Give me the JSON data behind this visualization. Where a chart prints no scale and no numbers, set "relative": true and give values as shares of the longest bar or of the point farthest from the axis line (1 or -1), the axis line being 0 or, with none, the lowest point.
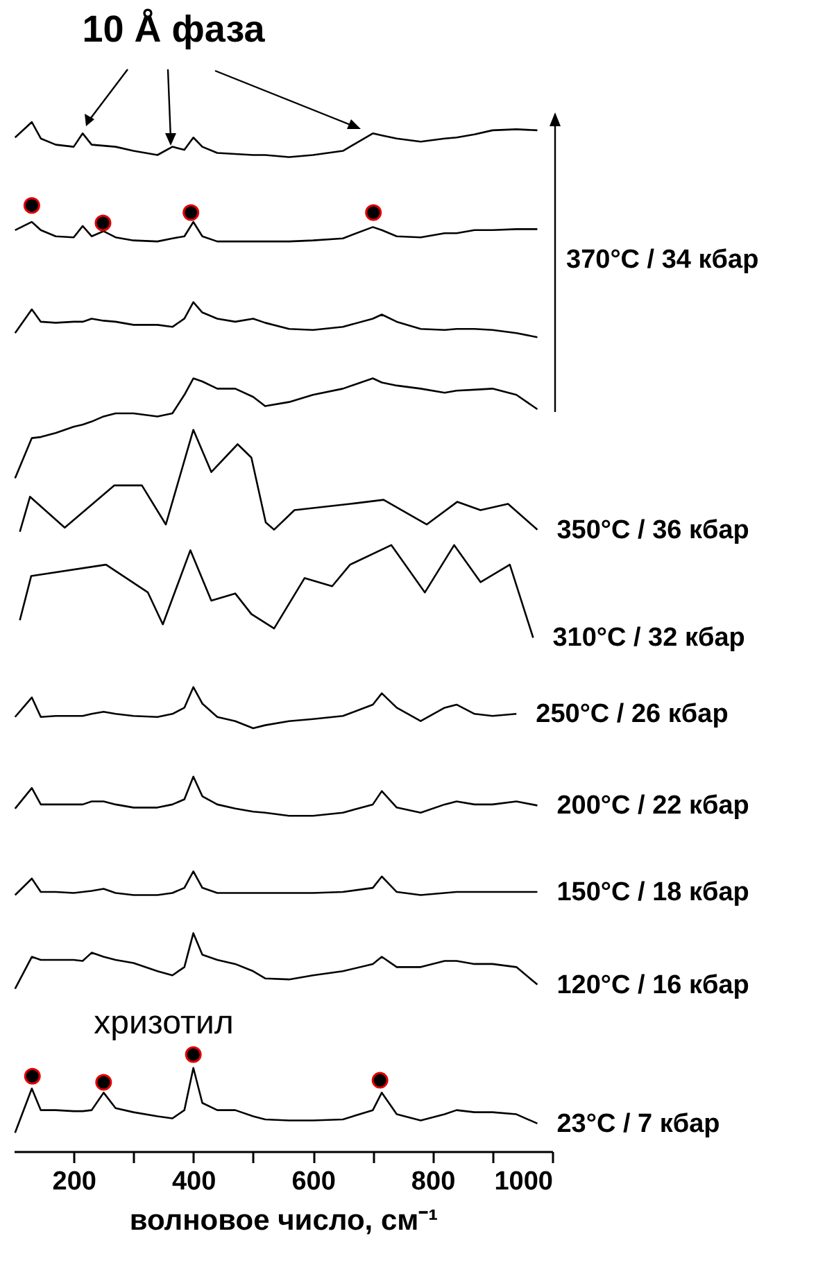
{
  "chart_data": {
    "type": "line",
    "relative": true,
    "xlabel": "волновое число, см⁻¹",
    "xlim": [
      100,
      1000
    ],
    "xticks": [
      200,
      {
        "value": 300,
        "label": null
      },
      400,
      {
        "value": 500,
        "label": null
      },
      600,
      {
        "value": 700,
        "label": null
      },
      800,
      {
        "value": 900,
        "label": null
      },
      1000
    ],
    "x": [
      102,
      130,
      145,
      170,
      200,
      215,
      230,
      250,
      270,
      300,
      340,
      365,
      385,
      400,
      415,
      440,
      470,
      500,
      520,
      560,
      600,
      650,
      700,
      715,
      740,
      780,
      820,
      840,
      870,
      900,
      940,
      975
    ],
    "annotations": [
      "10 Å фаза",
      "370°C / 34 кбар",
      "хризотил"
    ],
    "series": [
      {
        "color": "#000000",
        "values": [
          0.985,
          1.0,
          0.984,
          0.978,
          0.976,
          0.989,
          0.978,
          0.977,
          0.976,
          0.972,
          0.968,
          0.976,
          0.973,
          0.985,
          0.976,
          0.97,
          0.969,
          0.968,
          0.968,
          0.966,
          0.968,
          0.972,
          0.989,
          0.987,
          0.984,
          0.981,
          0.984,
          0.985,
          0.988,
          0.992,
          0.993,
          0.992
        ]
      },
      {
        "color": "#000000",
        "values": [
          0.895,
          0.903,
          0.895,
          0.889,
          0.888,
          0.899,
          0.889,
          0.894,
          0.888,
          0.885,
          0.884,
          0.887,
          0.889,
          0.903,
          0.889,
          0.884,
          0.884,
          0.884,
          0.884,
          0.884,
          0.885,
          0.887,
          0.898,
          0.895,
          0.889,
          0.888,
          0.892,
          0.892,
          0.895,
          0.895,
          0.896,
          0.896
        ]
      },
      {
        "color": "#000000",
        "values": [
          0.795,
          0.818,
          0.806,
          0.805,
          0.806,
          0.806,
          0.809,
          0.807,
          0.806,
          0.803,
          0.803,
          0.801,
          0.809,
          0.825,
          0.815,
          0.809,
          0.806,
          0.809,
          0.805,
          0.799,
          0.798,
          0.801,
          0.809,
          0.813,
          0.806,
          0.799,
          0.798,
          0.799,
          0.799,
          0.798,
          0.795,
          0.791
        ]
      },
      {
        "color": "#000000",
        "values": [
          0.654,
          0.693,
          0.694,
          0.698,
          0.704,
          0.706,
          0.709,
          0.714,
          0.717,
          0.717,
          0.714,
          0.717,
          0.735,
          0.751,
          0.748,
          0.741,
          0.741,
          0.733,
          0.724,
          0.728,
          0.735,
          0.741,
          0.751,
          0.747,
          0.744,
          0.741,
          0.737,
          0.739,
          0.74,
          0.741,
          0.735,
          0.721
        ]
      },
      {
        "name": "350°C / 36 кбар",
        "color": "#000000",
        "x": [
          110,
          127,
          185,
          268,
          314,
          354,
          400,
          430,
          474,
          497,
          521,
          535,
          569,
          662,
          718,
          790,
          841,
          880,
          926,
          975
        ],
        "values": [
          0.602,
          0.636,
          0.606,
          0.647,
          0.647,
          0.609,
          0.701,
          0.66,
          0.687,
          0.674,
          0.611,
          0.604,
          0.623,
          0.629,
          0.633,
          0.609,
          0.631,
          0.623,
          0.629,
          0.604
        ]
      },
      {
        "name": "310°C / 32 кбар",
        "color": "#000000",
        "x": [
          110,
          129,
          254,
          324,
          349,
          395,
          430,
          470,
          497,
          535,
          586,
          632,
          662,
          731,
          787,
          836,
          880,
          929,
          968
        ],
        "values": [
          0.516,
          0.559,
          0.57,
          0.543,
          0.512,
          0.584,
          0.535,
          0.542,
          0.522,
          0.508,
          0.557,
          0.549,
          0.57,
          0.589,
          0.543,
          0.589,
          0.553,
          0.57,
          0.499
        ]
      },
      {
        "name": "250°C / 26 кбар",
        "color": "#000000",
        "values": [
          0.422,
          0.441,
          0.422,
          0.423,
          0.423,
          0.423,
          0.425,
          0.427,
          0.425,
          0.423,
          0.422,
          0.425,
          0.431,
          0.451,
          0.435,
          0.422,
          0.418,
          0.411,
          0.414,
          0.418,
          0.42,
          0.423,
          0.434,
          0.445,
          0.431,
          0.418,
          0.431,
          0.434,
          0.425,
          0.423,
          0.425,
          null
        ]
      },
      {
        "name": "200°C / 22 кбар",
        "color": "#000000",
        "values": [
          0.333,
          0.353,
          0.337,
          0.337,
          0.337,
          0.337,
          0.34,
          0.34,
          0.337,
          0.334,
          0.334,
          0.337,
          0.342,
          0.364,
          0.345,
          0.337,
          0.333,
          0.33,
          0.329,
          0.326,
          0.326,
          0.329,
          0.337,
          0.35,
          0.334,
          0.329,
          0.337,
          0.34,
          0.337,
          0.337,
          0.34,
          0.336
        ]
      },
      {
        "name": "150°C / 18 кбар",
        "color": "#000000",
        "values": [
          0.249,
          0.265,
          0.252,
          0.252,
          0.251,
          0.252,
          0.253,
          0.255,
          0.251,
          0.249,
          0.249,
          0.251,
          0.256,
          0.272,
          0.256,
          0.251,
          0.251,
          0.251,
          0.251,
          0.251,
          0.251,
          0.252,
          0.256,
          0.267,
          0.252,
          0.249,
          0.251,
          0.252,
          0.252,
          0.252,
          0.252,
          0.252
        ]
      },
      {
        "name": "120°C / 16 кбар",
        "color": "#000000",
        "values": [
          0.158,
          0.189,
          0.186,
          0.186,
          0.186,
          0.185,
          0.193,
          0.189,
          0.186,
          0.183,
          0.175,
          0.171,
          0.179,
          0.212,
          0.191,
          0.186,
          0.182,
          0.175,
          0.168,
          0.167,
          0.171,
          0.175,
          0.182,
          0.189,
          0.179,
          0.179,
          0.185,
          0.185,
          0.182,
          0.182,
          0.179,
          0.162
        ]
      },
      {
        "name": "23°C / 7 кбар",
        "color": "#000000",
        "values": [
          0.018,
          0.061,
          0.04,
          0.04,
          0.039,
          0.039,
          0.04,
          0.057,
          0.042,
          0.038,
          0.034,
          0.032,
          0.04,
          0.081,
          0.047,
          0.04,
          0.04,
          0.034,
          0.031,
          0.03,
          0.03,
          0.031,
          0.04,
          0.057,
          0.036,
          0.03,
          0.036,
          0.04,
          0.038,
          0.038,
          0.036,
          0.027
        ]
      },
      {
        "type": "scatter",
        "marker": "circle",
        "color": "#000000",
        "x": [
          130,
          249,
          396,
          701
        ],
        "values": [
          0.919,
          0.902,
          0.912,
          0.912
        ]
      },
      {
        "type": "scatter",
        "marker": "circle",
        "color": "#000000",
        "x": [
          131,
          250,
          400,
          712
        ],
        "values": [
          0.073,
          0.067,
          0.094,
          0.069
        ]
      }
    ]
  }
}
